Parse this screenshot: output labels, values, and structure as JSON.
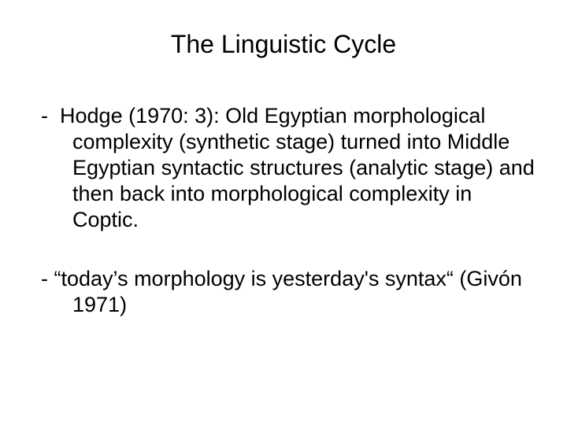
{
  "title": "The Linguistic Cycle",
  "items": [
    {
      "dash": "-",
      "text": "Hodge (1970: 3): Old Egyptian morphological complexity (synthetic stage) turned into Middle Egyptian syntactic structures (analytic stage) and then back into morphological complexity in Coptic."
    },
    {
      "dash": "-",
      "text": "“today’s morphology is yesterday's syntax“ (Givón 1971)"
    }
  ],
  "colors": {
    "background": "#ffffff",
    "text": "#000000"
  },
  "typography": {
    "title_fontsize": 32,
    "body_fontsize": 27,
    "font_family": "Arial"
  }
}
